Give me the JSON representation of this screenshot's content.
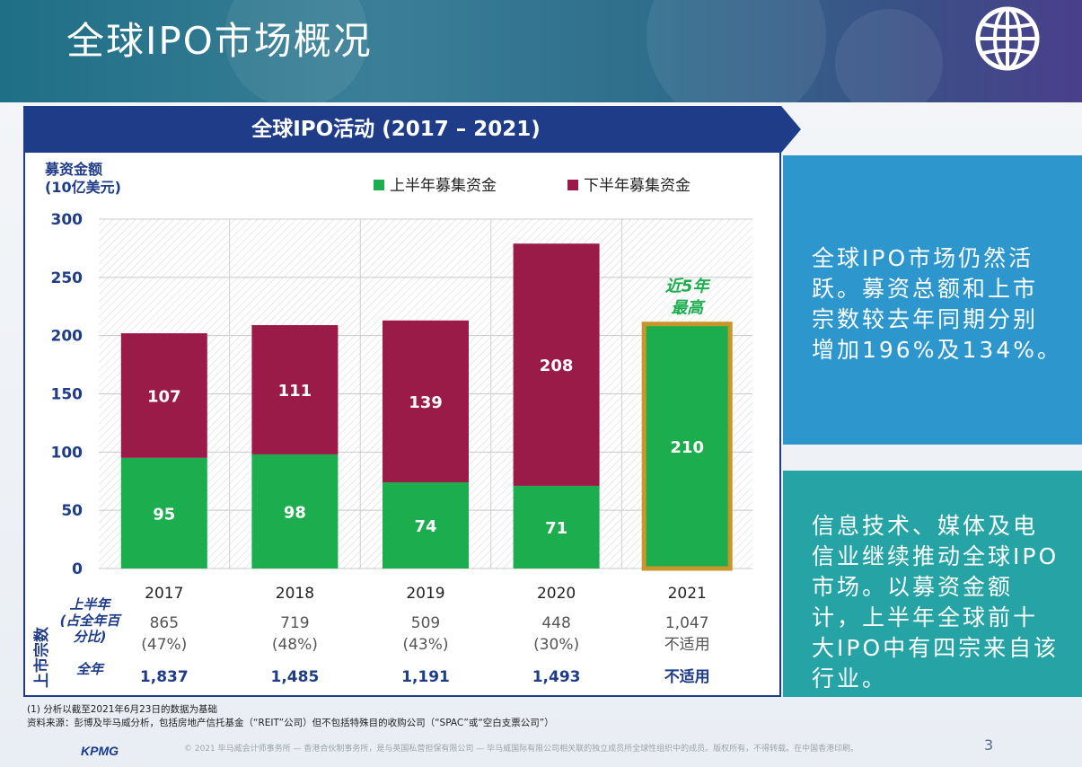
{
  "header": {
    "title": "全球IPO市场概况"
  },
  "panel": {
    "title": "全球IPO活动 (2017 – 2021)"
  },
  "chart_data": {
    "type": "bar",
    "stacked": true,
    "ylabel": "募资金额\n(10亿美元)",
    "ylim": [
      0,
      300
    ],
    "yticks": [
      0,
      50,
      100,
      150,
      200,
      250,
      300
    ],
    "categories": [
      "2017",
      "2018",
      "2019",
      "2020",
      "2021"
    ],
    "series": [
      {
        "name": "上半年募集资金",
        "values": [
          95,
          98,
          74,
          71,
          210
        ],
        "color": "#1cae4e"
      },
      {
        "name": "下半年募集资金",
        "values": [
          107,
          111,
          139,
          208,
          null
        ],
        "color": "#9b1b48"
      }
    ],
    "legend": "top",
    "grid": true,
    "annotation": {
      "text": "近5年\n最高",
      "category": "2021"
    },
    "highlight_color": "#c9962a"
  },
  "listings_table": {
    "side_label": "上市宗数",
    "h1_row_label": "上半年\n(占全年百\n分比)",
    "full_year_label": "全年",
    "h1_counts": [
      "865",
      "719",
      "509",
      "448",
      "1,047"
    ],
    "h1_percent": [
      "(47%)",
      "(48%)",
      "(43%)",
      "(30%)",
      "不适用"
    ],
    "full_year": [
      "1,837",
      "1,485",
      "1,191",
      "1,493",
      "不适用"
    ]
  },
  "side_boxes": {
    "box1": "全球IPO市场仍然活跃。募资总额和上市宗数较去年同期分别增加196%及134%。",
    "box2": "信息技术、媒体及电信业继续推动全球IPO市场。以募资金额计，上半年全球前十大IPO中有四宗来自该行业。"
  },
  "footnotes": {
    "note1": "(1) 分析以截至2021年6月23日的数据为基础",
    "source": "资料来源：彭博及毕马威分析，包括房地产信托基金（“REIT”公司）但不包括特殊目的收购公司（“SPAC”或“空白支票公司”）"
  },
  "footer": {
    "logo": "KPMG",
    "copyright": "© 2021 毕马威会计师事务所 — 香港合伙制事务所，是与英国私营担保有限公司 — 毕马威国际有限公司相关联的独立成员所全球性组织中的成员。版权所有，不得转载。在中国香港印刷。",
    "page_number": "3"
  },
  "colors": {
    "navy": "#1f3c88",
    "green": "#1cae4e",
    "maroon": "#9b1b48",
    "box_blue": "#2d97cd",
    "box_teal": "#26a3a5"
  }
}
